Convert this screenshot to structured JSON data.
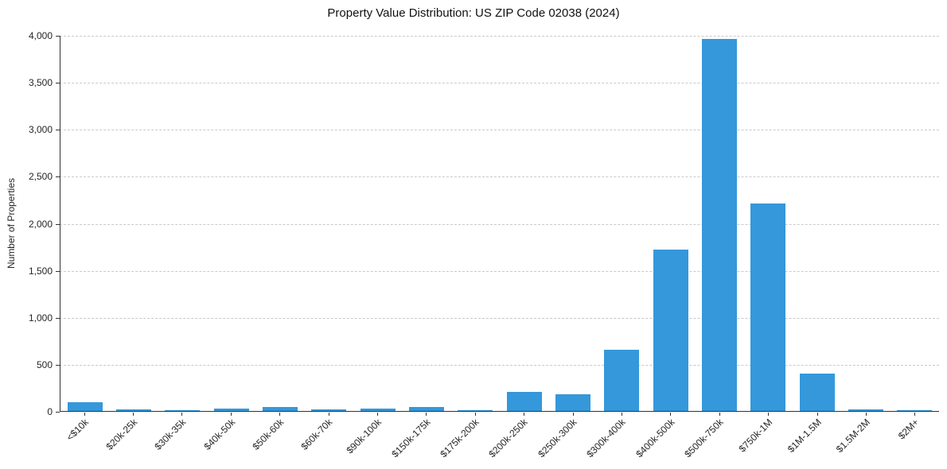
{
  "chart_data": {
    "type": "bar",
    "title": "Property Value Distribution: US ZIP Code 02038 (2024)",
    "xlabel": "",
    "ylabel": "Number of Properties",
    "ylim": [
      0,
      4000
    ],
    "ytick_step": 500,
    "grid": "horizontal-dashed",
    "legend": "none",
    "bar_color": "#3498db",
    "categories": [
      "<$10k",
      "$20k-25k",
      "$30k-35k",
      "$40k-50k",
      "$50k-60k",
      "$60k-70k",
      "$90k-100k",
      "$150k-175k",
      "$175k-200k",
      "$200k-250k",
      "$250k-300k",
      "$300k-400k",
      "$400k-500k",
      "$500k-750k",
      "$750k-1M",
      "$1M-1.5M",
      "$1.5M-2M",
      "$2M+"
    ],
    "values": [
      90,
      15,
      5,
      25,
      40,
      15,
      25,
      45,
      5,
      200,
      180,
      650,
      1720,
      3970,
      2210,
      400,
      15,
      5
    ]
  }
}
